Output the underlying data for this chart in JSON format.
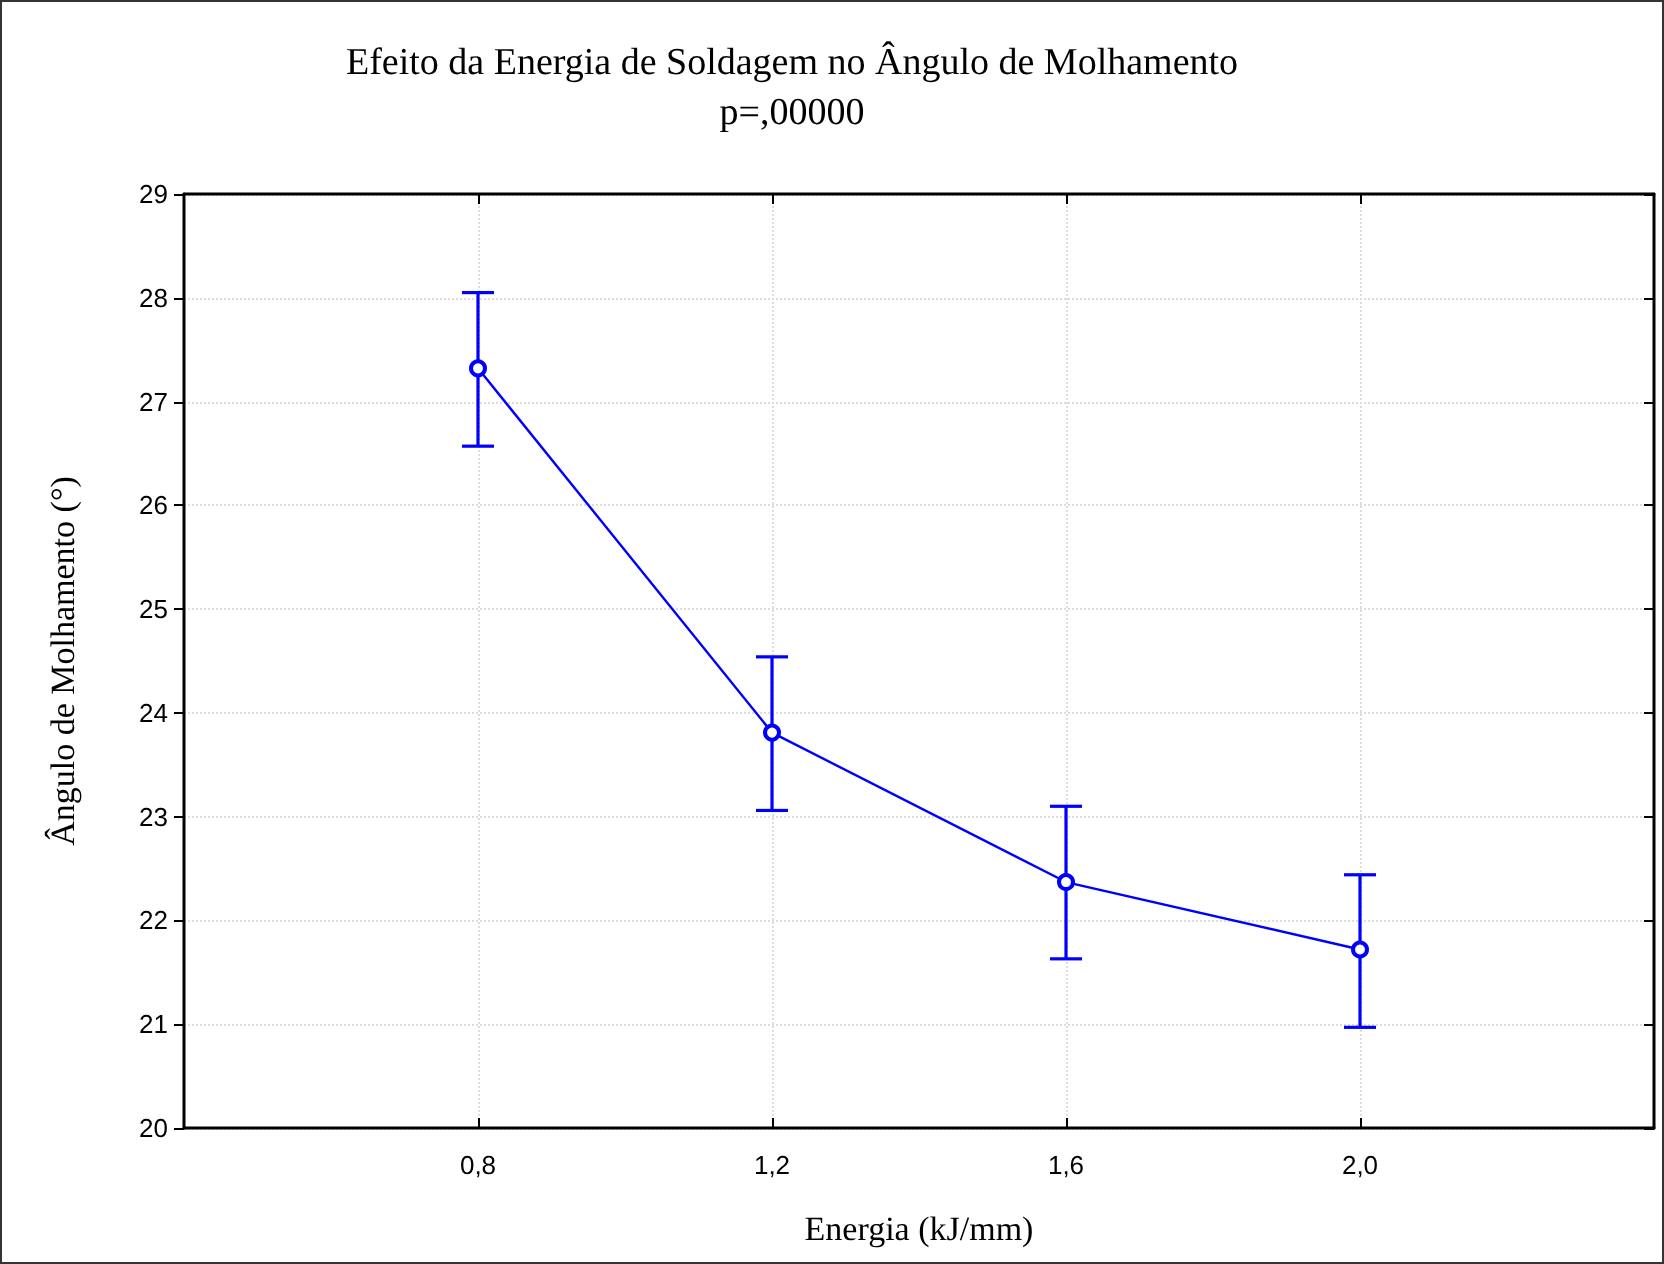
{
  "chart_data": {
    "type": "line",
    "title": "Efeito da Energia de Soldagem no Ângulo de Molhamento",
    "subtitle": "p=,00000",
    "xlabel": "Energia (kJ/mm)",
    "ylabel": "Ângulo de Molhamento (°)",
    "x": [
      0.8,
      1.2,
      1.6,
      2.0
    ],
    "series": [
      {
        "color": "#0000ff",
        "values": [
          27.32,
          23.81,
          22.37,
          21.72
        ],
        "errors": [
          [
            26.57,
            28.05
          ],
          [
            23.06,
            24.54
          ],
          [
            21.63,
            23.1
          ],
          [
            20.97,
            22.44
          ]
        ]
      }
    ],
    "xlim": [
      0.4,
      2.4
    ],
    "xticks": [
      {
        "value": 0.8,
        "label": "0,8"
      },
      {
        "value": 1.2,
        "label": "1,2"
      },
      {
        "value": 1.6,
        "label": "1,6"
      },
      {
        "value": 2.0,
        "label": "2,0"
      }
    ],
    "ylim": [
      20,
      29
    ],
    "yticks": [
      20,
      21,
      22,
      23,
      24,
      25,
      26,
      27,
      28,
      29
    ],
    "grid": true,
    "marker": "circle",
    "line_style": "solid"
  }
}
